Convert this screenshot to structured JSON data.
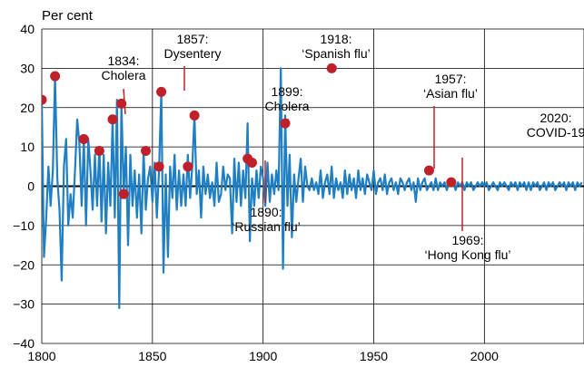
{
  "chart_data": {
    "type": "line",
    "ylabel": "Per cent",
    "ylim": [
      -40,
      40
    ],
    "yticks": [
      -40,
      -30,
      -20,
      -10,
      0,
      10,
      20,
      30,
      40
    ],
    "xlim": [
      1800,
      2045
    ],
    "xticks": [
      1800,
      1850,
      1900,
      1950,
      2000
    ],
    "grid": true,
    "colors": {
      "line": "#1f7fc2",
      "marker": "#c0202a",
      "leader": "#c0202a",
      "grid": "#000000",
      "zero": "#000000"
    },
    "series": [
      {
        "values": [
          [
            1800,
            22
          ],
          [
            1801,
            -18
          ],
          [
            1802,
            -8
          ],
          [
            1803,
            5
          ],
          [
            1804,
            -5
          ],
          [
            1805,
            4
          ],
          [
            1806,
            28
          ],
          [
            1807,
            2
          ],
          [
            1808,
            -6
          ],
          [
            1809,
            -24
          ],
          [
            1810,
            5
          ],
          [
            1811,
            12
          ],
          [
            1812,
            -10
          ],
          [
            1813,
            -2
          ],
          [
            1814,
            -8
          ],
          [
            1815,
            4
          ],
          [
            1816,
            17
          ],
          [
            1817,
            11
          ],
          [
            1818,
            -5
          ],
          [
            1819,
            12
          ],
          [
            1820,
            -10
          ],
          [
            1821,
            12
          ],
          [
            1822,
            4
          ],
          [
            1823,
            -6
          ],
          [
            1824,
            8
          ],
          [
            1825,
            -5
          ],
          [
            1826,
            10
          ],
          [
            1827,
            -9
          ],
          [
            1828,
            8
          ],
          [
            1829,
            -12
          ],
          [
            1830,
            6
          ],
          [
            1831,
            -5
          ],
          [
            1832,
            17
          ],
          [
            1833,
            -8
          ],
          [
            1834,
            22
          ],
          [
            1835,
            -31
          ],
          [
            1836,
            21
          ],
          [
            1837,
            -2
          ],
          [
            1838,
            10
          ],
          [
            1839,
            -15
          ],
          [
            1840,
            8
          ],
          [
            1841,
            -5
          ],
          [
            1842,
            4
          ],
          [
            1843,
            -8
          ],
          [
            1844,
            3
          ],
          [
            1845,
            -12
          ],
          [
            1846,
            9
          ],
          [
            1847,
            -6
          ],
          [
            1848,
            2
          ],
          [
            1849,
            5
          ],
          [
            1850,
            -4
          ],
          [
            1851,
            6
          ],
          [
            1852,
            -8
          ],
          [
            1853,
            4
          ],
          [
            1854,
            24
          ],
          [
            1855,
            -22
          ],
          [
            1856,
            3
          ],
          [
            1857,
            -18
          ],
          [
            1858,
            5
          ],
          [
            1859,
            -3
          ],
          [
            1860,
            8
          ],
          [
            1861,
            -6
          ],
          [
            1862,
            4
          ],
          [
            1863,
            -5
          ],
          [
            1864,
            3
          ],
          [
            1865,
            -5
          ],
          [
            1866,
            8
          ],
          [
            1867,
            -3
          ],
          [
            1868,
            5
          ],
          [
            1869,
            18
          ],
          [
            1870,
            -2
          ],
          [
            1871,
            4
          ],
          [
            1872,
            -8
          ],
          [
            1873,
            5
          ],
          [
            1874,
            -2
          ],
          [
            1875,
            3
          ],
          [
            1876,
            -3
          ],
          [
            1877,
            1
          ],
          [
            1878,
            -5
          ],
          [
            1879,
            6
          ],
          [
            1880,
            -4
          ],
          [
            1881,
            -2
          ],
          [
            1882,
            5
          ],
          [
            1883,
            -1
          ],
          [
            1884,
            3
          ],
          [
            1885,
            2
          ],
          [
            1886,
            -12
          ],
          [
            1887,
            7
          ],
          [
            1888,
            -4
          ],
          [
            1889,
            6
          ],
          [
            1890,
            -5
          ],
          [
            1891,
            4
          ],
          [
            1892,
            -3
          ],
          [
            1893,
            16
          ],
          [
            1894,
            -14
          ],
          [
            1895,
            2
          ],
          [
            1896,
            -5
          ],
          [
            1897,
            4
          ],
          [
            1898,
            -3
          ],
          [
            1899,
            5
          ],
          [
            1900,
            2
          ],
          [
            1901,
            -5
          ],
          [
            1902,
            6
          ],
          [
            1903,
            -4
          ],
          [
            1904,
            3
          ],
          [
            1905,
            -2
          ],
          [
            1906,
            4
          ],
          [
            1907,
            -1
          ],
          [
            1908,
            30
          ],
          [
            1909,
            -21
          ],
          [
            1910,
            18
          ],
          [
            1911,
            -5
          ],
          [
            1912,
            8
          ],
          [
            1913,
            -13
          ],
          [
            1914,
            3
          ],
          [
            1915,
            -4
          ],
          [
            1916,
            2
          ],
          [
            1917,
            7
          ],
          [
            1918,
            -4
          ],
          [
            1919,
            5
          ],
          [
            1920,
            0
          ],
          [
            1921,
            -1
          ],
          [
            1922,
            2
          ],
          [
            1923,
            -1
          ],
          [
            1924,
            1
          ],
          [
            1925,
            -2
          ],
          [
            1926,
            4
          ],
          [
            1927,
            -3
          ],
          [
            1928,
            1
          ],
          [
            1929,
            3
          ],
          [
            1930,
            -2
          ],
          [
            1931,
            5
          ],
          [
            1932,
            -3
          ],
          [
            1933,
            2
          ],
          [
            1934,
            -1
          ],
          [
            1935,
            1
          ],
          [
            1936,
            -3
          ],
          [
            1937,
            4
          ],
          [
            1938,
            -2
          ],
          [
            1939,
            3
          ],
          [
            1940,
            -1
          ],
          [
            1941,
            2
          ],
          [
            1942,
            -3
          ],
          [
            1943,
            4
          ],
          [
            1944,
            -1
          ],
          [
            1945,
            2
          ],
          [
            1946,
            -2
          ],
          [
            1947,
            3
          ],
          [
            1948,
            1
          ],
          [
            1949,
            -1
          ],
          [
            1950,
            4
          ],
          [
            1951,
            -2
          ],
          [
            1952,
            1
          ],
          [
            1953,
            2
          ],
          [
            1954,
            -1
          ],
          [
            1955,
            3
          ],
          [
            1956,
            -2
          ],
          [
            1957,
            1
          ],
          [
            1958,
            2
          ],
          [
            1959,
            -1
          ],
          [
            1960,
            1
          ],
          [
            1961,
            -2
          ],
          [
            1962,
            2
          ],
          [
            1963,
            1
          ],
          [
            1964,
            -1
          ],
          [
            1965,
            1
          ],
          [
            1966,
            2
          ],
          [
            1967,
            -1
          ],
          [
            1968,
            1
          ],
          [
            1969,
            -4
          ],
          [
            1970,
            2
          ],
          [
            1971,
            -1
          ],
          [
            1972,
            1
          ],
          [
            1973,
            2
          ],
          [
            1974,
            -1
          ],
          [
            1975,
            0
          ],
          [
            1976,
            1
          ],
          [
            1977,
            -1
          ],
          [
            1978,
            2
          ],
          [
            1979,
            -1
          ],
          [
            1980,
            1
          ],
          [
            1981,
            0
          ],
          [
            1982,
            1
          ],
          [
            1983,
            -1
          ],
          [
            1984,
            1
          ],
          [
            1985,
            0
          ],
          [
            1986,
            1
          ],
          [
            1987,
            -1
          ],
          [
            1988,
            1
          ],
          [
            1989,
            0
          ],
          [
            1990,
            1
          ],
          [
            1991,
            -1
          ],
          [
            1992,
            1
          ],
          [
            1993,
            0
          ],
          [
            1994,
            1
          ],
          [
            1995,
            -1
          ],
          [
            1996,
            0
          ],
          [
            1997,
            1
          ],
          [
            1998,
            0
          ],
          [
            1999,
            1
          ],
          [
            2000,
            0
          ],
          [
            2001,
            1
          ],
          [
            2002,
            -1
          ],
          [
            2003,
            0
          ],
          [
            2004,
            1
          ],
          [
            2005,
            0
          ],
          [
            2006,
            -1
          ],
          [
            2007,
            1
          ],
          [
            2008,
            0
          ],
          [
            2009,
            1
          ],
          [
            2010,
            0
          ],
          [
            2011,
            -1
          ],
          [
            2012,
            1
          ],
          [
            2013,
            0
          ],
          [
            2014,
            1
          ],
          [
            2015,
            -1
          ],
          [
            2016,
            1
          ],
          [
            2017,
            0
          ],
          [
            2018,
            1
          ],
          [
            2019,
            -1
          ],
          [
            2020,
            1
          ],
          [
            2021,
            -1
          ],
          [
            2022,
            1
          ],
          [
            2023,
            0
          ],
          [
            2024,
            1
          ],
          [
            2025,
            -1
          ],
          [
            2026,
            0
          ],
          [
            2027,
            1
          ],
          [
            2028,
            -1
          ],
          [
            2029,
            1
          ],
          [
            2030,
            0
          ],
          [
            2031,
            1
          ],
          [
            2032,
            -1
          ],
          [
            2033,
            0
          ],
          [
            2034,
            1
          ],
          [
            2035,
            0
          ],
          [
            2036,
            1
          ],
          [
            2037,
            -1
          ],
          [
            2038,
            1
          ],
          [
            2039,
            0
          ],
          [
            2040,
            1
          ],
          [
            2041,
            -1
          ],
          [
            2042,
            1
          ],
          [
            2043,
            0
          ],
          [
            2044,
            1
          ]
        ]
      }
    ],
    "markers": [
      [
        1800,
        22
      ],
      [
        1806,
        28
      ],
      [
        1819,
        12
      ],
      [
        1826,
        9
      ],
      [
        1832,
        17
      ],
      [
        1836,
        21
      ],
      [
        1837,
        -2
      ],
      [
        1847,
        9
      ],
      [
        1853,
        5
      ],
      [
        1854,
        24
      ],
      [
        1866,
        5
      ],
      [
        1869,
        18
      ],
      [
        1893,
        7
      ],
      [
        1895,
        6
      ],
      [
        1910,
        16
      ],
      [
        1931,
        30
      ],
      [
        1975,
        4
      ],
      [
        1985,
        1
      ]
    ],
    "annotations": [
      {
        "lines": [
          "1834:",
          "Cholera"
        ],
        "year": 1834,
        "value": 17
      },
      {
        "lines": [
          "1857:",
          "Dysentery"
        ],
        "year": 1857,
        "value": 24
      },
      {
        "lines": [
          "1899:",
          "Cholera"
        ],
        "year": 1899,
        "value": 16
      },
      {
        "lines": [
          "1918:",
          "‘Spanish flu’"
        ],
        "year": 1918,
        "value": 30
      },
      {
        "lines": [
          "1957:",
          "‘Asian flu’"
        ],
        "year": 1957,
        "value": 4
      },
      {
        "lines": [
          "2020:",
          "COVID-19"
        ],
        "year": 2020,
        "value": 1
      },
      {
        "lines": [
          "1890:",
          "‘Russian flu’"
        ],
        "year": 1890,
        "value": 7
      },
      {
        "lines": [
          "1969:",
          "‘Hong Kong flu’"
        ],
        "year": 1969,
        "value": 1
      }
    ]
  }
}
